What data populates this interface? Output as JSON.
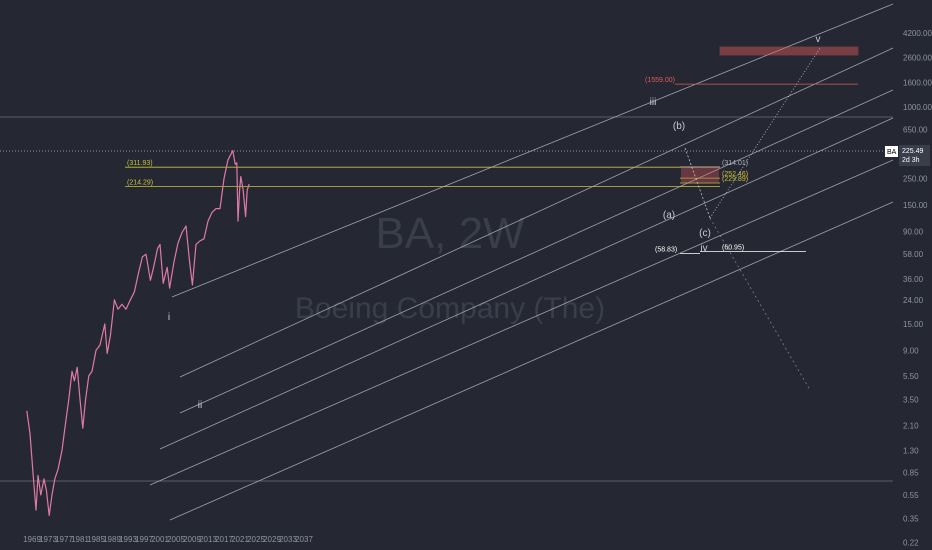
{
  "chart_data": {
    "type": "line",
    "ticker": "BA",
    "watermark_title": "BA, 2W",
    "watermark_subtitle": "Boeing Company (The)",
    "price_label": "225.49",
    "countdown_label": "2d 3h",
    "y_axis": {
      "scale": "log",
      "ticks": [
        "4200.00",
        "2600.00",
        "1600.00",
        "1000.00",
        "650.00",
        "410.00",
        "250.00",
        "150.00",
        "90.00",
        "58.00",
        "36.00",
        "24.00",
        "15.00",
        "9.00",
        "5.50",
        "3.50",
        "2.10",
        "1.30",
        "0.85",
        "0.55",
        "0.35",
        "0.22"
      ],
      "tick_values": [
        4200,
        2600,
        1600,
        1000,
        650,
        410,
        250,
        150,
        90,
        58,
        36,
        24,
        15,
        9,
        5.5,
        3.5,
        2.1,
        1.3,
        0.85,
        0.55,
        0.35,
        0.22
      ]
    },
    "x_axis": {
      "ticks": [
        "1969",
        "1973",
        "1977",
        "1981",
        "1985",
        "1989",
        "1993",
        "1997",
        "2001",
        "2005",
        "2009",
        "2013",
        "2017",
        "2021",
        "2025",
        "2029",
        "2033",
        "2037"
      ]
    },
    "series": [
      {
        "x": [
          1967.7,
          1968.5,
          1969.3,
          1970.0,
          1970.5,
          1971.2,
          1972.0,
          1972.6,
          1973.3,
          1974.0,
          1974.7,
          1975.5,
          1976.5,
          1977.3,
          1978.2,
          1979.0,
          1979.6,
          1980.3,
          1981.0,
          1981.7,
          1982.4,
          1983.2,
          1984.0,
          1985.0,
          1986.0,
          1987.2,
          1987.8,
          1988.6,
          1989.6,
          1990.5,
          1991.5,
          1992.5,
          1993.6,
          1994.6,
          1995.6,
          1996.6,
          1997.5,
          1998.6,
          1999.4,
          2000.4,
          2001.0,
          2001.8,
          2002.8,
          2003.4,
          2004.5,
          2005.5,
          2006.5,
          2007.5,
          2008.4,
          2009.1,
          2010.0,
          2011.0,
          2012.0,
          2013.0,
          2014.0,
          2015.0,
          2016.0,
          2017.0,
          2018.0,
          2019.2,
          2019.8,
          2020.2,
          2020.5,
          2020.9,
          2021.2,
          2021.8,
          2022.4,
          2022.8,
          2023.3
        ],
        "y": [
          2.8,
          1.8,
          0.8,
          0.41,
          0.8,
          0.55,
          0.75,
          0.6,
          0.37,
          0.55,
          0.75,
          0.9,
          1.3,
          2.1,
          3.5,
          6.0,
          5.0,
          6.5,
          3.5,
          2.0,
          3.5,
          5.5,
          6.0,
          9.0,
          10.0,
          15.0,
          8.5,
          12.0,
          24.0,
          20.0,
          22.0,
          20.0,
          24.0,
          28.0,
          40.0,
          55.0,
          58.0,
          35.0,
          45.0,
          65.0,
          70.0,
          33.0,
          45.0,
          30.0,
          50.0,
          72.0,
          88.0,
          100.0,
          50.0,
          32.0,
          70.0,
          75.0,
          78.0,
          110.0,
          130.0,
          140.0,
          140.0,
          250.0,
          360.0,
          430.0,
          330.0,
          340.0,
          110.0,
          200.0,
          260.0,
          200.0,
          120.0,
          200.0,
          225.49
        ]
      }
    ],
    "channel_lines": 6,
    "wave_labels": [
      "i",
      "ii",
      "iii",
      "(a)",
      "(b)",
      "(c)",
      "iv",
      "v"
    ],
    "price_levels": [
      {
        "label": "(311.93)",
        "value": 311.93,
        "color": "#c9c23a"
      },
      {
        "label": "(214.29)",
        "value": 214.29,
        "color": "#c9c23a"
      },
      {
        "label": "(314.01)",
        "value": 314.01,
        "color": "#b0b3bd"
      },
      {
        "label": "(252.46)",
        "value": 252.46,
        "color": "#c9c23a"
      },
      {
        "label": "(229.89)",
        "value": 229.89,
        "color": "#c9c23a"
      },
      {
        "label": "(58.83)",
        "value": 58.83,
        "color": "#ffffff"
      },
      {
        "label": "(60.95)",
        "value": 60.95,
        "color": "#ffffff"
      },
      {
        "label": "(1559.00)",
        "value": 1559.0,
        "color": "#e05a5a"
      }
    ],
    "grid": false
  },
  "colors": {
    "background": "#252833",
    "price": "#e07aa6",
    "channel": "#c9ccd6",
    "fib": "#c9c23a",
    "target": "#e05a5a"
  }
}
